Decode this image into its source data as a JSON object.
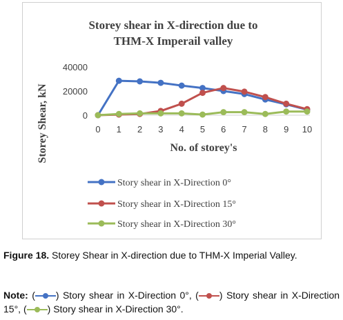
{
  "chart_data": {
    "type": "line",
    "title_lines": [
      "Storey shear in X-direction due to",
      "THM-X Imperail valley"
    ],
    "xlabel": "No. of storey's",
    "ylabel": "Storey Shear, kN",
    "x": [
      0,
      1,
      2,
      3,
      4,
      5,
      6,
      7,
      8,
      9,
      10
    ],
    "x_tick_labels": [
      "0",
      "1",
      "2",
      "3",
      "4",
      "5",
      "6",
      "7",
      "8",
      "9",
      "10"
    ],
    "y_tick_labels": [
      "0",
      "20000",
      "40000"
    ],
    "ylim": [
      0,
      40000
    ],
    "grid": false,
    "legend_position": "bottom",
    "series": [
      {
        "name": "Story shear in X-Direction 0°",
        "color": "#4472c4",
        "values": [
          0,
          28500,
          28000,
          26800,
          24500,
          22500,
          20000,
          17500,
          13000,
          9000,
          4500
        ]
      },
      {
        "name": "Story shear in X-Direction 15°",
        "color": "#c0504d",
        "values": [
          0,
          500,
          1000,
          3500,
          9500,
          18500,
          22500,
          19500,
          15000,
          9500,
          5000
        ]
      },
      {
        "name": "Story shear in X-Direction 30°",
        "color": "#9bbb59",
        "values": [
          0,
          1000,
          1500,
          1500,
          1500,
          500,
          2500,
          2500,
          1000,
          3000,
          3000
        ]
      }
    ]
  },
  "caption": {
    "label": "Figure 18.",
    "text": "Storey Shear in X-direction due to THM-X Imperial Valley."
  },
  "note": {
    "label": "Note:",
    "items": [
      "Story shear in X-Direction 0°,",
      "Story shear in X-Direction 15°,",
      "Story shear in X-Direction 30°."
    ],
    "open_paren": "(",
    "close_paren": ")"
  }
}
